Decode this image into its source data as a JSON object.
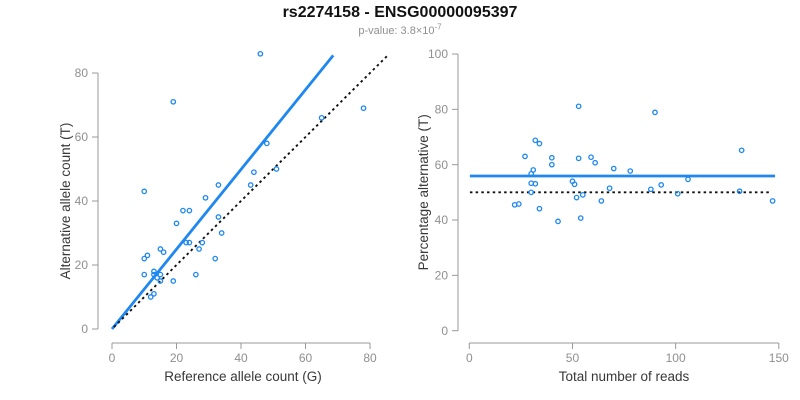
{
  "header": {
    "title": "rs2274158 - ENSG00000095397",
    "p_value_text": "p-value: 3.8×10",
    "p_value_exponent": "-7"
  },
  "style": {
    "accent": "#1E88F0",
    "axis_color": "#999999",
    "tick_label_color": "#8f8f8f",
    "axis_title_color": "#383838",
    "dotted_line_color": "#111111"
  },
  "chart_data": [
    {
      "type": "scatter",
      "name": "allele-counts-panel",
      "xlabel": "Reference allele count (G)",
      "ylabel": "Alternative allele count (T)",
      "xlim": [
        0,
        80
      ],
      "ylim": [
        0,
        80
      ],
      "xticks": [
        0,
        20,
        40,
        60,
        80
      ],
      "yticks": [
        0,
        20,
        40,
        60,
        80
      ],
      "grid": false,
      "legend": "none",
      "marker": "open-circle",
      "points": [
        [
          10,
          43
        ],
        [
          19,
          71
        ],
        [
          46,
          86
        ],
        [
          10,
          22
        ],
        [
          11,
          23
        ],
        [
          10,
          17
        ],
        [
          15,
          25
        ],
        [
          16,
          24
        ],
        [
          20,
          33
        ],
        [
          22,
          37
        ],
        [
          24,
          37
        ],
        [
          29,
          41
        ],
        [
          33,
          45
        ],
        [
          13,
          18
        ],
        [
          13,
          17
        ],
        [
          14,
          16
        ],
        [
          15,
          17
        ],
        [
          23,
          27
        ],
        [
          24,
          27
        ],
        [
          28,
          27
        ],
        [
          27,
          25
        ],
        [
          33,
          35
        ],
        [
          43,
          45
        ],
        [
          44,
          49
        ],
        [
          48,
          58
        ],
        [
          15,
          15
        ],
        [
          19,
          15
        ],
        [
          51,
          50
        ],
        [
          65,
          66
        ],
        [
          34,
          30
        ],
        [
          78,
          69
        ],
        [
          12,
          10
        ],
        [
          13,
          11
        ],
        [
          26,
          17
        ],
        [
          32,
          22
        ]
      ],
      "lines": [
        {
          "name": "regression-line",
          "style": "solid",
          "color": "#1E88F0",
          "x1": 0,
          "y1": 0,
          "x2": 68.6,
          "y2": 85.5
        },
        {
          "name": "identity-line",
          "style": "dotted",
          "color": "#111111",
          "x1": 0.6,
          "y1": 0.6,
          "x2": 85.4,
          "y2": 85.4
        }
      ]
    },
    {
      "type": "scatter",
      "name": "percentage-panel",
      "xlabel": "Total number of reads",
      "ylabel": "Percentage alternative (T)",
      "xlim": [
        0,
        150
      ],
      "ylim": [
        0,
        100
      ],
      "xticks": [
        0,
        50,
        100,
        150
      ],
      "yticks": [
        0,
        20,
        40,
        60,
        80,
        100
      ],
      "grid": false,
      "legend": "none",
      "marker": "open-circle",
      "points": [
        [
          53,
          81.1
        ],
        [
          90,
          78.9
        ],
        [
          132,
          65.2
        ],
        [
          32,
          68.8
        ],
        [
          34,
          67.6
        ],
        [
          27,
          63.0
        ],
        [
          40,
          62.5
        ],
        [
          40,
          60.0
        ],
        [
          53,
          62.3
        ],
        [
          59,
          62.7
        ],
        [
          61,
          60.7
        ],
        [
          70,
          58.6
        ],
        [
          78,
          57.7
        ],
        [
          31,
          58.1
        ],
        [
          30,
          56.7
        ],
        [
          30,
          53.3
        ],
        [
          32,
          53.1
        ],
        [
          50,
          54.0
        ],
        [
          51,
          52.9
        ],
        [
          55,
          49.1
        ],
        [
          52,
          48.1
        ],
        [
          68,
          51.5
        ],
        [
          88,
          51.1
        ],
        [
          93,
          52.7
        ],
        [
          106,
          54.7
        ],
        [
          30,
          50.0
        ],
        [
          34,
          44.1
        ],
        [
          101,
          49.5
        ],
        [
          131,
          50.4
        ],
        [
          64,
          46.9
        ],
        [
          147,
          46.9
        ],
        [
          22,
          45.5
        ],
        [
          24,
          45.8
        ],
        [
          43,
          39.5
        ],
        [
          54,
          40.7
        ]
      ],
      "lines": [
        {
          "name": "mean-percentage-line",
          "style": "solid",
          "color": "#1E88F0",
          "x1": 0.3,
          "y1": 55.9,
          "x2": 148.2,
          "y2": 55.9
        },
        {
          "name": "fifty-percent-line",
          "style": "dotted",
          "color": "#111111",
          "x1": 0.3,
          "y1": 50,
          "x2": 146,
          "y2": 50
        }
      ]
    }
  ]
}
